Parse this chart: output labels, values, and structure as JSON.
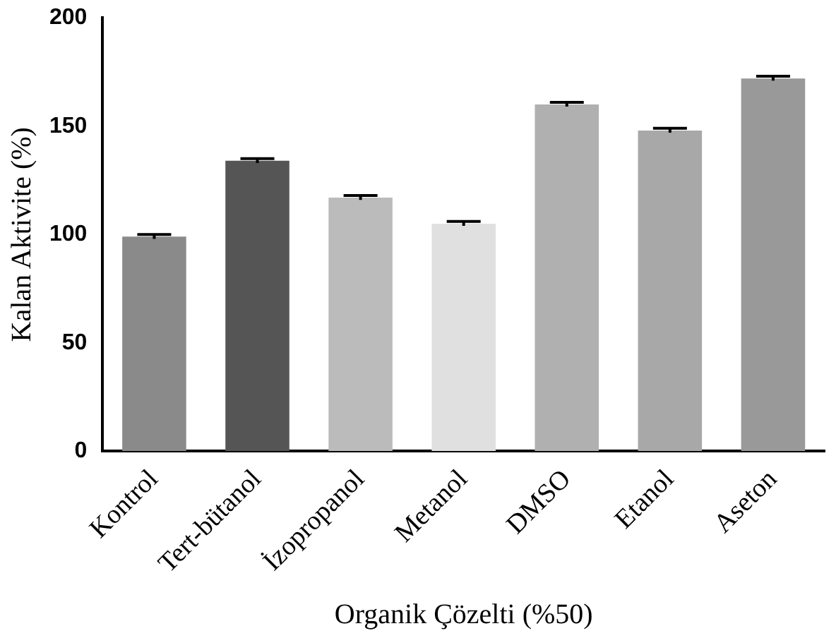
{
  "chart_data": {
    "type": "bar",
    "xlabel": "Organik Çözelti (%50)",
    "ylabel": "Kalan Aktivite (%)",
    "categories": [
      "Kontrol",
      "Tert-bütanol",
      "İzopropanol",
      "Metanol",
      "DMSO",
      "Etanol",
      "Aseton"
    ],
    "values": [
      99,
      134,
      117,
      105,
      160,
      148,
      172
    ],
    "errors": [
      1,
      1,
      1,
      1,
      1,
      1,
      1
    ],
    "colors": [
      "#8a8a8a",
      "#555555",
      "#bbbbbb",
      "#e0e0e0",
      "#b0b0b0",
      "#a8a8a8",
      "#999999"
    ],
    "ylim": [
      0,
      200
    ],
    "yticks": [
      0,
      50,
      100,
      150,
      200
    ],
    "grid": false,
    "legend": false
  }
}
